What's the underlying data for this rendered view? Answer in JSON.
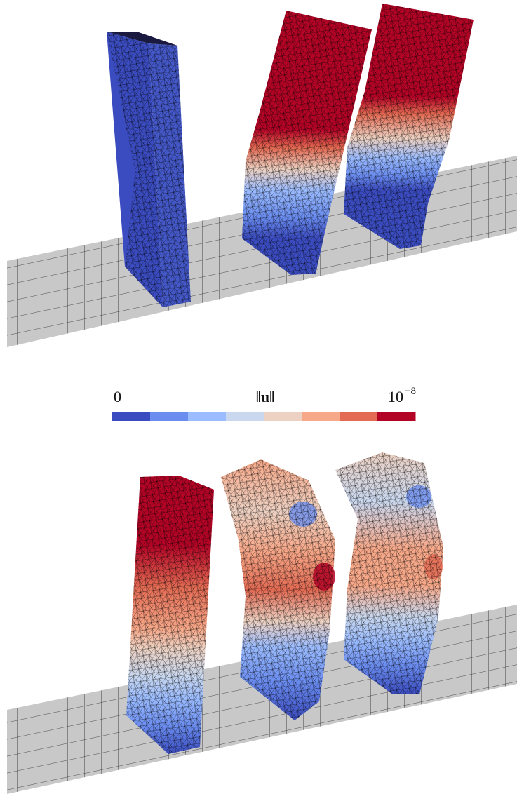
{
  "colorbar": {
    "min_label": "0",
    "label": "‖u‖",
    "max_base": "10",
    "max_exponent": "−8",
    "colors": [
      "#3b4cc0",
      "#6b8df0",
      "#9bbcff",
      "#c9d8ef",
      "#edd1c2",
      "#f7a889",
      "#e36a53",
      "#b40426"
    ]
  }
}
